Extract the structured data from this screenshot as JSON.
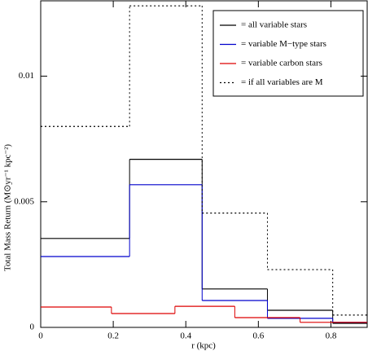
{
  "chart_data": {
    "type": "step",
    "x_label": "r (kpc)",
    "y_label": "Total Mass Return (M⊙yr⁻¹ kpc⁻²)",
    "xlim": [
      0,
      0.9
    ],
    "ylim": [
      0,
      0.013
    ],
    "xticks": [
      0,
      0.2,
      0.4,
      0.6,
      0.8
    ],
    "yticks": [
      0,
      0.005,
      0.01
    ],
    "legend": "upper right",
    "series": [
      {
        "name": "= all variable stars",
        "color": "#000000",
        "dash": "solid",
        "bins": [
          0,
          0.245,
          0.445,
          0.625,
          0.805,
          0.9
        ],
        "values": [
          0.00354,
          0.00669,
          0.00153,
          0.00068,
          0.00016
        ]
      },
      {
        "name": "= variable M−type stars",
        "color": "#0000cc",
        "dash": "solid",
        "bins": [
          0,
          0.245,
          0.445,
          0.625,
          0.805,
          0.9
        ],
        "values": [
          0.00282,
          0.00568,
          0.00107,
          0.00036,
          0.0002
        ]
      },
      {
        "name": "= variable carbon stars",
        "color": "#dd0000",
        "dash": "solid",
        "bins": [
          0,
          0.195,
          0.37,
          0.535,
          0.715,
          0.9
        ],
        "values": [
          0.00081,
          0.00055,
          0.00084,
          0.00039,
          0.0002
        ]
      },
      {
        "name": "= if all variables are M",
        "color": "#000000",
        "dash": "dotted",
        "bins": [
          0,
          0.245,
          0.445,
          0.625,
          0.805,
          0.9
        ],
        "values": [
          0.008,
          0.0128,
          0.00455,
          0.0023,
          0.00049
        ]
      }
    ]
  }
}
